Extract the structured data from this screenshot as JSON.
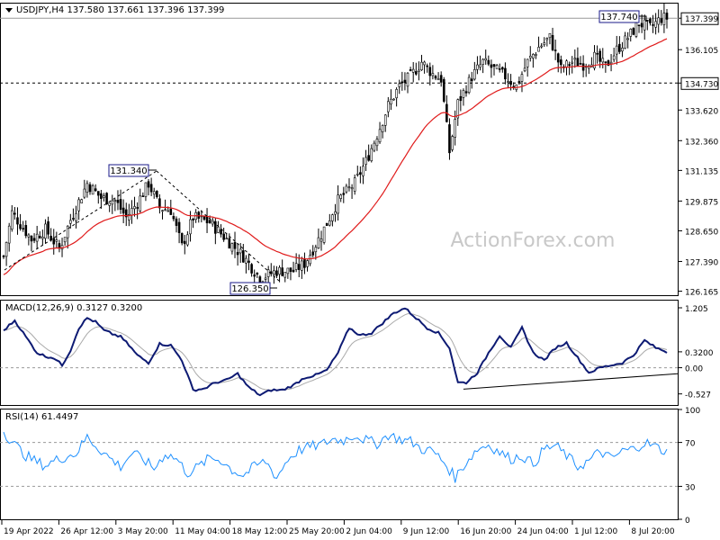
{
  "chart_data": {
    "type": "candlestick",
    "watermark": "ActionForex.com",
    "main": {
      "title": "USDJPY,H4  137.580 137.661 137.396 137.399",
      "yticks": [
        "137.399",
        "136.105",
        "134.730",
        "133.620",
        "132.360",
        "131.135",
        "129.875",
        "128.650",
        "127.390",
        "126.165"
      ],
      "ylim": [
        126.0,
        138.0
      ],
      "current_price": "137.399",
      "support_level": "134.730",
      "annotations": [
        "137.740",
        "131.340",
        "126.350"
      ],
      "moving_average": {
        "color": "#e01b1b"
      },
      "close_anchors": [
        [
          0,
          127.6
        ],
        [
          3,
          129.4
        ],
        [
          10,
          128.3
        ],
        [
          15,
          128.7
        ],
        [
          20,
          127.9
        ],
        [
          24,
          129.1
        ],
        [
          30,
          130.6
        ],
        [
          35,
          130.0
        ],
        [
          40,
          129.9
        ],
        [
          44,
          129.2
        ],
        [
          48,
          129.8
        ],
        [
          52,
          130.6
        ],
        [
          56,
          129.6
        ],
        [
          60,
          129.5
        ],
        [
          64,
          128.0
        ],
        [
          68,
          129.2
        ],
        [
          74,
          129.0
        ],
        [
          80,
          128.3
        ],
        [
          86,
          127.6
        ],
        [
          92,
          126.7
        ],
        [
          98,
          127.0
        ],
        [
          104,
          127.0
        ],
        [
          108,
          127.3
        ],
        [
          114,
          128.5
        ],
        [
          120,
          129.9
        ],
        [
          126,
          130.6
        ],
        [
          130,
          131.5
        ],
        [
          134,
          132.6
        ],
        [
          138,
          133.8
        ],
        [
          142,
          134.6
        ],
        [
          146,
          135.0
        ],
        [
          150,
          135.6
        ],
        [
          154,
          135.1
        ],
        [
          157,
          134.9
        ],
        [
          160,
          131.9
        ],
        [
          163,
          133.9
        ],
        [
          168,
          135.0
        ],
        [
          172,
          135.6
        ],
        [
          176,
          135.3
        ],
        [
          180,
          135.0
        ],
        [
          184,
          134.6
        ],
        [
          188,
          135.6
        ],
        [
          192,
          136.2
        ],
        [
          196,
          136.6
        ],
        [
          200,
          135.3
        ],
        [
          204,
          135.6
        ],
        [
          208,
          135.5
        ],
        [
          212,
          135.8
        ],
        [
          216,
          135.4
        ],
        [
          220,
          136.1
        ],
        [
          224,
          136.6
        ],
        [
          228,
          137.2
        ],
        [
          232,
          137.0
        ],
        [
          236,
          137.4
        ],
        [
          238,
          137.4
        ]
      ]
    },
    "macd": {
      "title": "MACD(12,26,9)  0.3127  0.3200",
      "yticks": [
        "1.205",
        "0.3200",
        "0.00",
        "-0.527"
      ],
      "ylim": [
        -0.75,
        1.35
      ],
      "support_line": {
        "from": [
          165,
          -0.43
        ],
        "to": [
          250,
          -0.12
        ]
      },
      "macd_anchors": [
        [
          0,
          0.75
        ],
        [
          4,
          0.95
        ],
        [
          8,
          0.62
        ],
        [
          12,
          0.3
        ],
        [
          15,
          0.23
        ],
        [
          18,
          0.2
        ],
        [
          21,
          0.05
        ],
        [
          24,
          0.35
        ],
        [
          27,
          0.8
        ],
        [
          30,
          1.0
        ],
        [
          33,
          0.92
        ],
        [
          36,
          0.75
        ],
        [
          39,
          0.68
        ],
        [
          42,
          0.62
        ],
        [
          45,
          0.45
        ],
        [
          48,
          0.25
        ],
        [
          52,
          0.1
        ],
        [
          56,
          0.48
        ],
        [
          60,
          0.45
        ],
        [
          64,
          0.15
        ],
        [
          68,
          -0.45
        ],
        [
          72,
          -0.42
        ],
        [
          76,
          -0.3
        ],
        [
          80,
          -0.25
        ],
        [
          84,
          -0.12
        ],
        [
          88,
          -0.4
        ],
        [
          92,
          -0.55
        ],
        [
          96,
          -0.45
        ],
        [
          100,
          -0.45
        ],
        [
          104,
          -0.35
        ],
        [
          108,
          -0.2
        ],
        [
          112,
          -0.15
        ],
        [
          116,
          -0.05
        ],
        [
          120,
          0.3
        ],
        [
          124,
          0.8
        ],
        [
          128,
          0.65
        ],
        [
          132,
          0.7
        ],
        [
          136,
          0.9
        ],
        [
          140,
          1.1
        ],
        [
          144,
          1.2
        ],
        [
          148,
          1.0
        ],
        [
          152,
          0.8
        ],
        [
          156,
          0.7
        ],
        [
          160,
          0.4
        ],
        [
          163,
          -0.3
        ],
        [
          166,
          -0.3
        ],
        [
          170,
          -0.1
        ],
        [
          174,
          0.3
        ],
        [
          178,
          0.65
        ],
        [
          182,
          0.4
        ],
        [
          186,
          0.8
        ],
        [
          190,
          0.3
        ],
        [
          194,
          0.15
        ],
        [
          198,
          0.4
        ],
        [
          202,
          0.5
        ],
        [
          206,
          0.2
        ],
        [
          210,
          -0.1
        ],
        [
          214,
          0.0
        ],
        [
          218,
          0.05
        ],
        [
          222,
          0.1
        ],
        [
          226,
          0.25
        ],
        [
          230,
          0.55
        ],
        [
          234,
          0.4
        ],
        [
          238,
          0.32
        ]
      ]
    },
    "rsi": {
      "title": "RSI(14)  61.4497",
      "yticks": [
        "100",
        "70",
        "30",
        "0"
      ],
      "ylim": [
        0,
        100
      ],
      "levels": [
        70,
        30
      ],
      "rsi_anchors": [
        [
          0,
          80
        ],
        [
          4,
          68
        ],
        [
          8,
          58
        ],
        [
          12,
          52
        ],
        [
          15,
          49
        ],
        [
          18,
          53
        ],
        [
          22,
          57
        ],
        [
          26,
          60
        ],
        [
          30,
          75
        ],
        [
          34,
          65
        ],
        [
          38,
          56
        ],
        [
          42,
          48
        ],
        [
          46,
          60
        ],
        [
          50,
          55
        ],
        [
          54,
          46
        ],
        [
          58,
          60
        ],
        [
          62,
          55
        ],
        [
          66,
          42
        ],
        [
          70,
          48
        ],
        [
          74,
          56
        ],
        [
          78,
          54
        ],
        [
          82,
          45
        ],
        [
          86,
          40
        ],
        [
          90,
          48
        ],
        [
          94,
          53
        ],
        [
          98,
          38
        ],
        [
          102,
          55
        ],
        [
          106,
          63
        ],
        [
          110,
          66
        ],
        [
          114,
          68
        ],
        [
          118,
          73
        ],
        [
          122,
          72
        ],
        [
          126,
          77
        ],
        [
          130,
          72
        ],
        [
          134,
          69
        ],
        [
          138,
          77
        ],
        [
          142,
          73
        ],
        [
          146,
          71
        ],
        [
          150,
          64
        ],
        [
          154,
          62
        ],
        [
          158,
          52
        ],
        [
          162,
          38
        ],
        [
          166,
          52
        ],
        [
          170,
          64
        ],
        [
          174,
          68
        ],
        [
          178,
          61
        ],
        [
          182,
          55
        ],
        [
          186,
          58
        ],
        [
          190,
          50
        ],
        [
          194,
          64
        ],
        [
          198,
          67
        ],
        [
          202,
          58
        ],
        [
          206,
          48
        ],
        [
          210,
          53
        ],
        [
          214,
          62
        ],
        [
          218,
          55
        ],
        [
          222,
          62
        ],
        [
          226,
          64
        ],
        [
          230,
          70
        ],
        [
          234,
          66
        ],
        [
          238,
          61
        ]
      ]
    },
    "x_labels": [
      "19 Apr 2022",
      "26 Apr 12:00",
      "3 May 20:00",
      "11 May 04:00",
      "18 May 12:00",
      "25 May 20:00",
      "2 Jun 04:00",
      "9 Jun 12:00",
      "16 Jun 20:00",
      "24 Jun 04:00",
      "1 Jul 12:00",
      "8 Jul 20:00"
    ]
  }
}
